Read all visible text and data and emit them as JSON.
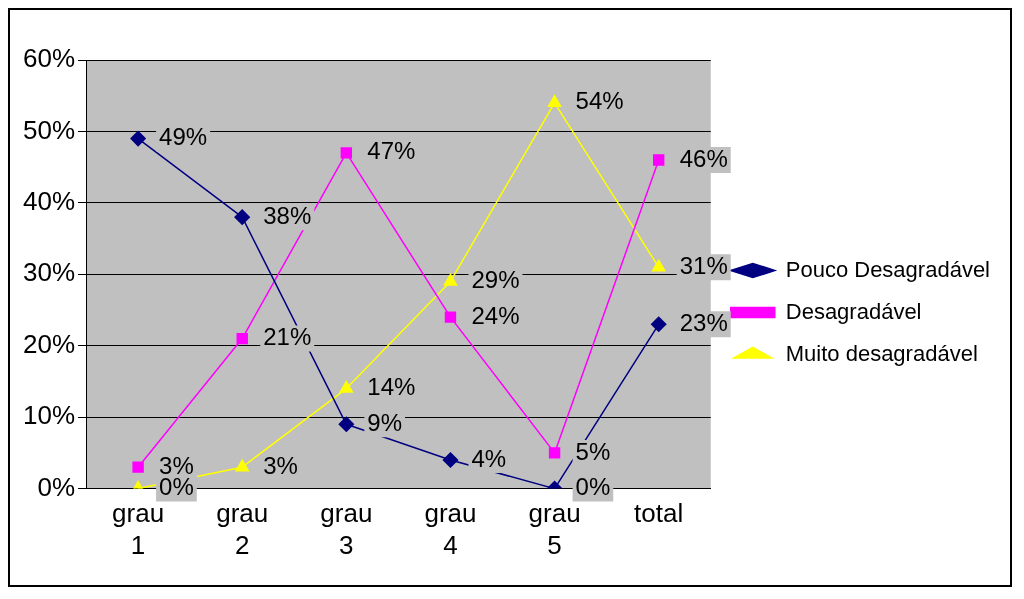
{
  "chart_data": {
    "type": "line",
    "categories": [
      "grau 1",
      "grau 2",
      "grau 3",
      "grau 4",
      "grau 5",
      "total"
    ],
    "series": [
      {
        "name": "Pouco Desagradável",
        "color": "#000080",
        "marker": "diamond",
        "values": [
          49,
          38,
          9,
          4,
          0,
          23
        ],
        "value_labels": [
          "49%",
          "38%",
          "9%",
          "4%",
          "0%",
          "23%"
        ]
      },
      {
        "name": "Desagradável",
        "color": "#ff00ff",
        "marker": "square",
        "values": [
          3,
          21,
          47,
          24,
          5,
          46
        ],
        "value_labels": [
          "3%",
          "21%",
          "47%",
          "24%",
          "5%",
          "46%"
        ]
      },
      {
        "name": "Muito desagradável",
        "color": "#ffff00",
        "marker": "triangle",
        "values": [
          0,
          3,
          14,
          29,
          54,
          31
        ],
        "value_labels": [
          "0%",
          "3%",
          "14%",
          "29%",
          "54%",
          "31%"
        ]
      }
    ],
    "ylim": [
      0,
      60
    ],
    "yticks": [
      {
        "value": 0,
        "label": "0%"
      },
      {
        "value": 10,
        "label": "10%"
      },
      {
        "value": 20,
        "label": "20%"
      },
      {
        "value": 30,
        "label": "30%"
      },
      {
        "value": 40,
        "label": "40%"
      },
      {
        "value": 50,
        "label": "50%"
      },
      {
        "value": 60,
        "label": "60%"
      }
    ],
    "grid": "y",
    "legend": "right",
    "line_style": "solid"
  }
}
